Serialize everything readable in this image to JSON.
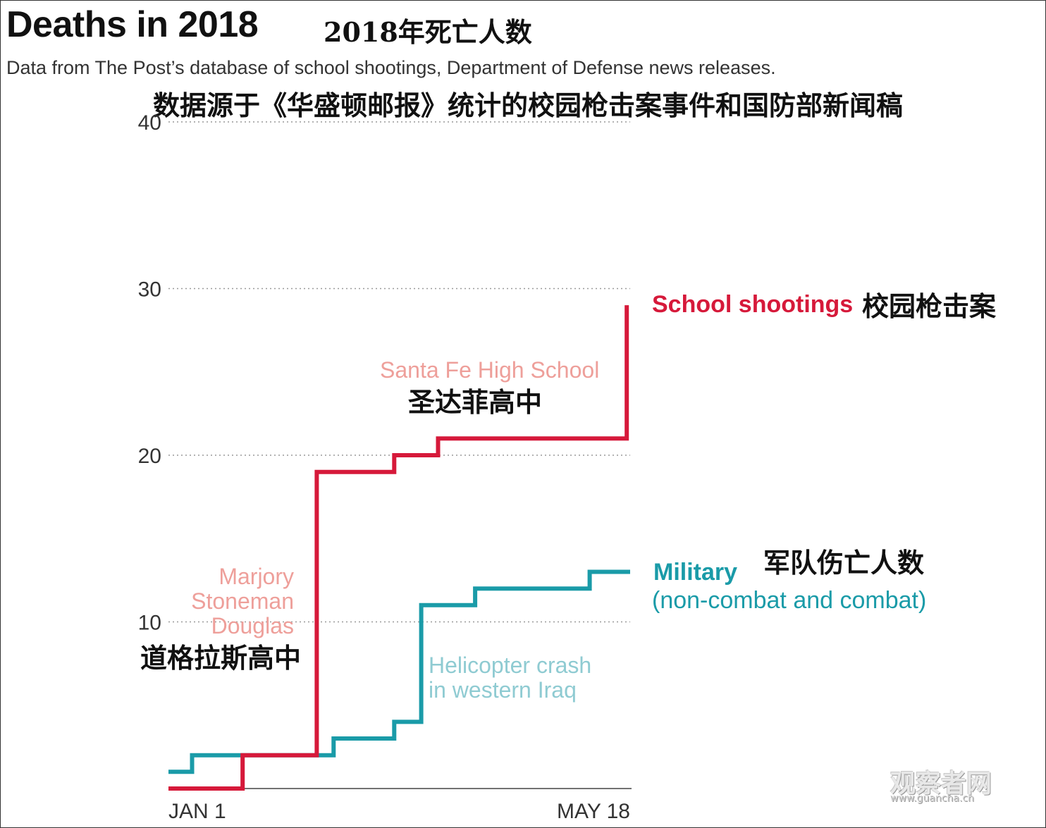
{
  "header": {
    "title": "Deaths in 2018",
    "title_cn": "2018年死亡人数",
    "subtitle": "Data from The Post’s database of school shootings, Department of Defense news releases.",
    "subtitle_cn": "数据源于《华盛顿邮报》统计的校园枪击案事件和国防部新闻稿"
  },
  "chart_data": {
    "type": "line",
    "step": true,
    "x_axis": {
      "start": "JAN 1",
      "end": "MAY 18",
      "start_day": 1,
      "end_day": 138
    },
    "y_ticks": [
      "10",
      "20",
      "30",
      "40"
    ],
    "ylim": [
      0,
      40
    ],
    "grid": "dotted horizontal",
    "colors": {
      "school": "#d6193a",
      "military": "#1a9ba8",
      "school_annot": "#ee9f9a",
      "military_annot": "#8fcbd2"
    },
    "series": [
      {
        "name": "School shootings",
        "name_cn": "校园枪击案",
        "points": [
          [
            1,
            0
          ],
          [
            23,
            0
          ],
          [
            23,
            2
          ],
          [
            45,
            2
          ],
          [
            45,
            19
          ],
          [
            68,
            19
          ],
          [
            68,
            20
          ],
          [
            81,
            20
          ],
          [
            81,
            21
          ],
          [
            137,
            21
          ],
          [
            137,
            29
          ]
        ]
      },
      {
        "name": "Military",
        "name_sub": "(non-combat and combat)",
        "name_cn": "军队伤亡人数",
        "points": [
          [
            1,
            1
          ],
          [
            8,
            1
          ],
          [
            8,
            2
          ],
          [
            50,
            2
          ],
          [
            50,
            3
          ],
          [
            68,
            3
          ],
          [
            68,
            4
          ],
          [
            76,
            4
          ],
          [
            76,
            11
          ],
          [
            92,
            11
          ],
          [
            92,
            12
          ],
          [
            126,
            12
          ],
          [
            126,
            13
          ],
          [
            138,
            13
          ]
        ]
      }
    ],
    "annotations": [
      {
        "lines": [
          "Santa Fe High School"
        ],
        "cn": "圣达菲高中",
        "series": "school"
      },
      {
        "lines": [
          "Marjory",
          "Stoneman",
          "Douglas"
        ],
        "cn": "道格拉斯高中",
        "series": "school"
      },
      {
        "lines": [
          "Helicopter crash",
          "in western Iraq"
        ],
        "series": "military"
      }
    ]
  },
  "watermark": {
    "text": "观察者网",
    "url": "www.guancha.cn"
  }
}
